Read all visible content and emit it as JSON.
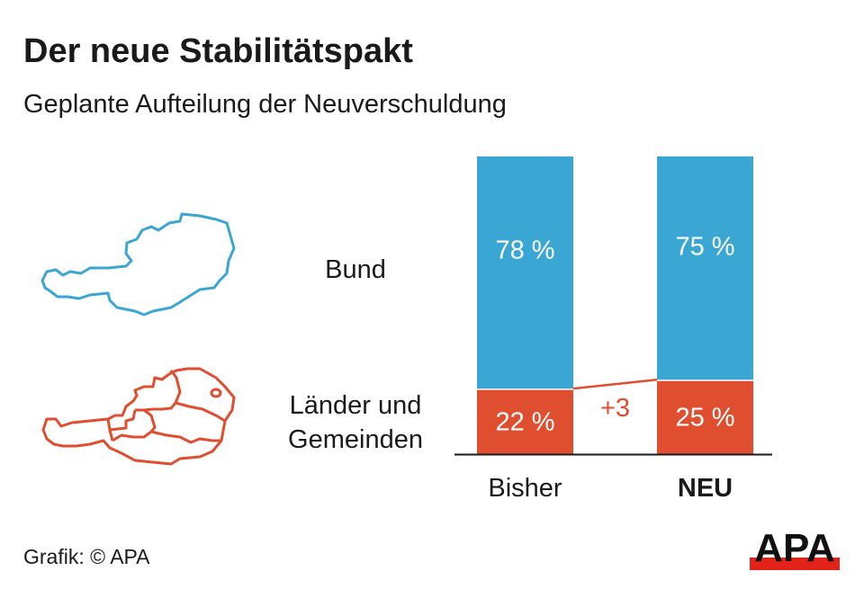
{
  "title": "Der neue Stabilitätspakt",
  "subtitle": "Geplante Aufteilung der Neuverschuldung",
  "source": "Grafik: © APA",
  "logo_text": "APA",
  "colors": {
    "bund": "#3aa6d3",
    "laender": "#e04e30",
    "logo_red": "#e2231a"
  },
  "icons": {
    "bund": "austria-outline-map-icon",
    "laender": "austria-states-map-icon"
  },
  "chart_data": {
    "type": "bar",
    "stacked": true,
    "categories": [
      "Bisher",
      "NEU"
    ],
    "series": [
      {
        "name": "Länder und Gemeinden",
        "values": [
          22,
          25
        ],
        "labels": [
          "22 %",
          "25 %"
        ]
      },
      {
        "name": "Bund",
        "values": [
          78,
          75
        ],
        "labels": [
          "78 %",
          "75 %"
        ]
      }
    ],
    "annotation": "+3",
    "ylim": [
      0,
      100
    ]
  }
}
